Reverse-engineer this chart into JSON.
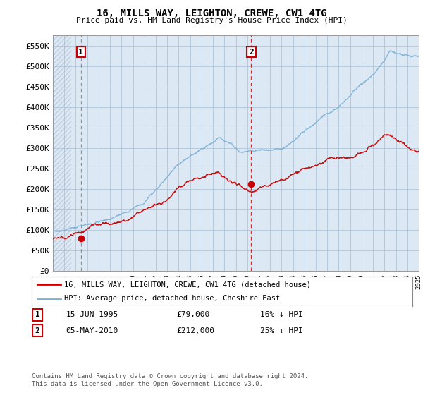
{
  "title": "16, MILLS WAY, LEIGHTON, CREWE, CW1 4TG",
  "subtitle": "Price paid vs. HM Land Registry's House Price Index (HPI)",
  "ylim": [
    0,
    575000
  ],
  "yticks": [
    0,
    50000,
    100000,
    150000,
    200000,
    250000,
    300000,
    350000,
    400000,
    450000,
    500000,
    550000
  ],
  "ytick_labels": [
    "£0",
    "£50K",
    "£100K",
    "£150K",
    "£200K",
    "£250K",
    "£300K",
    "£350K",
    "£400K",
    "£450K",
    "£500K",
    "£550K"
  ],
  "x_start_year": 1993,
  "x_end_year": 2025,
  "ann1_year": 1995.45,
  "ann1_price": 79000,
  "ann2_year": 2010.35,
  "ann2_price": 212000,
  "legend_entry1": "16, MILLS WAY, LEIGHTON, CREWE, CW1 4TG (detached house)",
  "legend_entry2": "HPI: Average price, detached house, Cheshire East",
  "footnote": "Contains HM Land Registry data © Crown copyright and database right 2024.\nThis data is licensed under the Open Government Licence v3.0.",
  "table_row1": [
    "1",
    "15-JUN-1995",
    "£79,000",
    "16% ↓ HPI"
  ],
  "table_row2": [
    "2",
    "05-MAY-2010",
    "£212,000",
    "25% ↓ HPI"
  ],
  "hpi_color": "#7bafd4",
  "price_color": "#cc0000",
  "plot_bg": "#dce9f5",
  "hatch_color": "#c0cfe0",
  "grid_color": "#b0c4d8",
  "ann_line_color": "#cc0000",
  "ann1_vline_color": "#888888",
  "fig_bg": "#ffffff"
}
